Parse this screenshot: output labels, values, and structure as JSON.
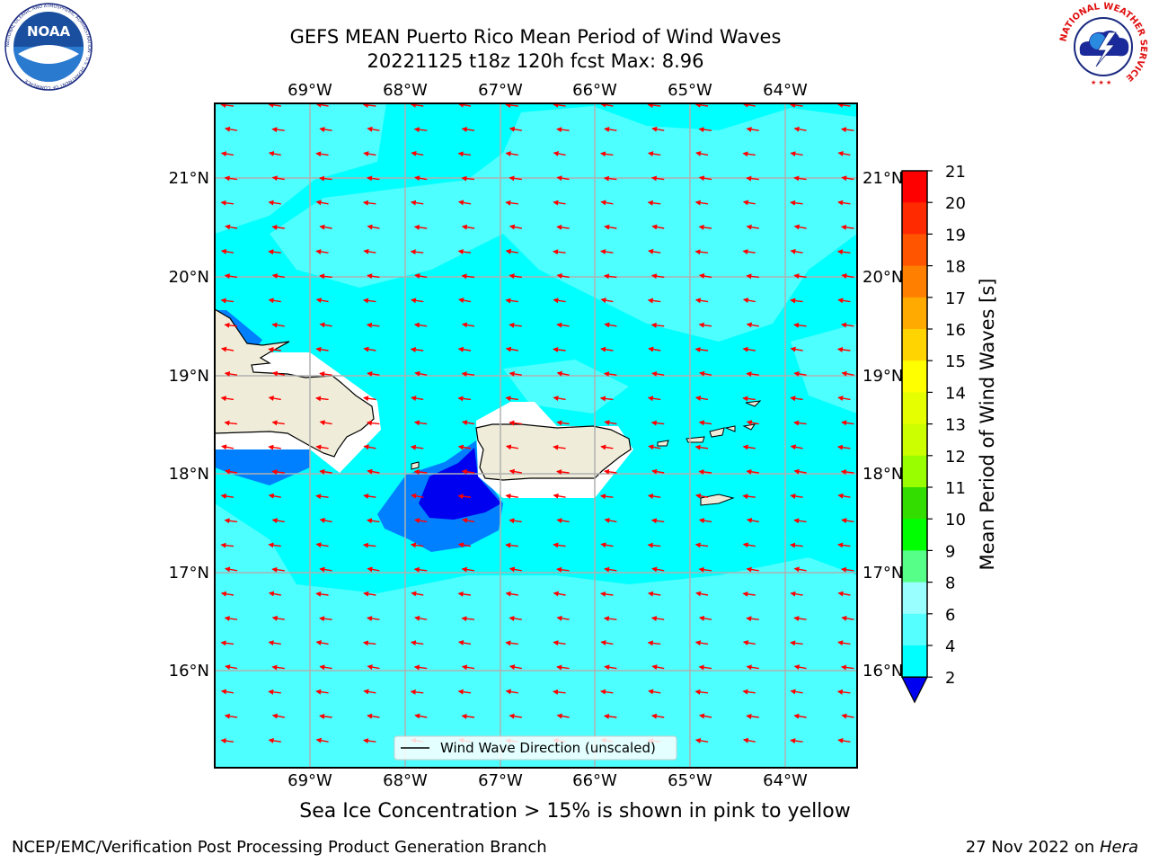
{
  "header": {
    "title_line1": "GEFS MEAN Puerto Rico Mean Period of Wind Waves",
    "title_line2": "20221125 t18z 120h fcst   Max: 8.96"
  },
  "logos": {
    "left": "NOAA",
    "left_ring": "NATIONAL OCEANIC AND ATMOSPHERIC ADMINISTRATION · U.S. DEPARTMENT OF COMMERCE",
    "right_ring": "NATIONAL WEATHER SERVICE"
  },
  "map": {
    "lon_labels": [
      "69°W",
      "68°W",
      "67°W",
      "66°W",
      "65°W",
      "64°W"
    ],
    "lat_labels": [
      "21°N",
      "20°N",
      "19°N",
      "18°N",
      "17°N",
      "16°N"
    ],
    "legend_label": "Wind Wave Direction (unscaled)",
    "wave_direction": "toward southwest",
    "colors": {
      "ocean_6_8": "#00ffff",
      "ocean_8_9": "#4dffff",
      "band_2_4": "#0080ff",
      "band_lt2": "#0000f0",
      "land": "#efedda",
      "arrow": "#ff0000",
      "grid": "#b0b0b0"
    }
  },
  "colorbar": {
    "label": "Mean Period of Wind Waves [s]",
    "ticks": [
      "21",
      "20",
      "19",
      "18",
      "17",
      "16",
      "15",
      "14",
      "13",
      "12",
      "11",
      "10",
      "9",
      "8",
      "6",
      "4",
      "2"
    ],
    "colors": [
      "#ff0000",
      "#ff2a00",
      "#ff5500",
      "#ff8000",
      "#ffaa00",
      "#ffd400",
      "#ffff00",
      "#e6ff00",
      "#ccff00",
      "#99ff00",
      "#33dd00",
      "#00ff00",
      "#55ff88",
      "#99ffff",
      "#55ffff",
      "#00ffff",
      "#0080ff"
    ],
    "under_color": "#0000f0"
  },
  "caption": "Sea Ice Concentration > 15% is shown in pink to yellow",
  "footer": {
    "left": "NCEP/EMC/Verification Post Processing Product Generation Branch",
    "right_prefix": "27 Nov 2022 on ",
    "right_host": "Hera"
  }
}
